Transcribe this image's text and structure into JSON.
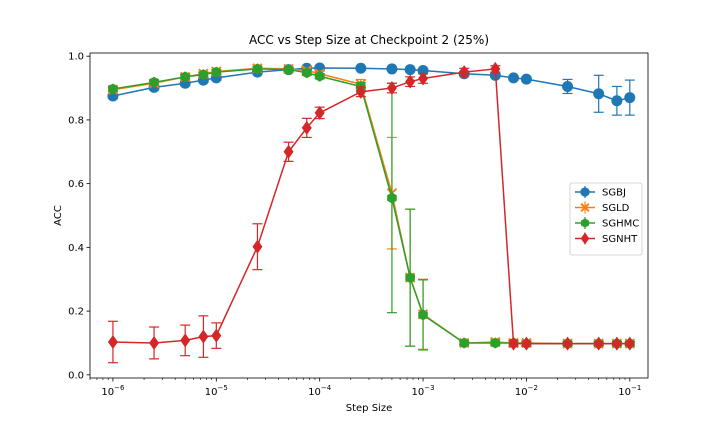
{
  "chart_data": {
    "type": "line",
    "title": "ACC vs Step Size at Checkpoint 2 (25%)",
    "xlabel": "Step Size",
    "ylabel": "ACC",
    "xscale": "log",
    "xlim": [
      6e-07,
      0.15
    ],
    "ylim": [
      -0.01,
      1.01
    ],
    "xticks": [
      {
        "value": 1e-06,
        "base": "10",
        "exp": "−6"
      },
      {
        "value": 1e-05,
        "base": "10",
        "exp": "−5"
      },
      {
        "value": 0.0001,
        "base": "10",
        "exp": "−4"
      },
      {
        "value": 0.001,
        "base": "10",
        "exp": "−3"
      },
      {
        "value": 0.01,
        "base": "10",
        "exp": "−2"
      },
      {
        "value": 0.1,
        "base": "10",
        "exp": "−1"
      }
    ],
    "yticks": [
      {
        "value": 0.0,
        "label": "0.0"
      },
      {
        "value": 0.2,
        "label": "0.2"
      },
      {
        "value": 0.4,
        "label": "0.4"
      },
      {
        "value": 0.6,
        "label": "0.6"
      },
      {
        "value": 0.8,
        "label": "0.8"
      },
      {
        "value": 1.0,
        "label": "1.0"
      }
    ],
    "grid": false,
    "legend_position": "center-right",
    "x": [
      1e-06,
      2.5e-06,
      5e-06,
      7.5e-06,
      1e-05,
      2.5e-05,
      5e-05,
      7.5e-05,
      0.0001,
      0.00025,
      0.0005,
      0.00075,
      0.001,
      0.0025,
      0.005,
      0.0075,
      0.01,
      0.025,
      0.05,
      0.075,
      0.1
    ],
    "series": [
      {
        "name": "SGBJ",
        "color": "#1f77b4",
        "marker": "circle",
        "values": [
          0.875,
          0.902,
          0.915,
          0.925,
          0.932,
          0.95,
          0.958,
          0.962,
          0.963,
          0.962,
          0.96,
          0.958,
          0.955,
          0.945,
          0.94,
          0.932,
          0.928,
          0.905,
          0.882,
          0.86,
          0.87
        ],
        "errors": [
          0.008,
          0.008,
          0.008,
          0.008,
          0.008,
          0.006,
          0.006,
          0.005,
          0.005,
          0.005,
          0.005,
          0.005,
          0.005,
          0.006,
          0.006,
          0.007,
          0.007,
          0.022,
          0.058,
          0.045,
          0.055
        ]
      },
      {
        "name": "SGLD",
        "color": "#ff7f0e",
        "marker": "x",
        "values": [
          0.895,
          0.915,
          0.935,
          0.945,
          0.952,
          0.962,
          0.96,
          0.955,
          0.945,
          0.912,
          0.57,
          0.305,
          0.19,
          0.1,
          0.103,
          0.1,
          0.1,
          0.098,
          0.098,
          0.098,
          0.098
        ],
        "errors": [
          0.006,
          0.006,
          0.006,
          0.006,
          0.006,
          0.006,
          0.006,
          0.008,
          0.008,
          0.015,
          0.175,
          0.215,
          0.11,
          0.005,
          0.008,
          0.008,
          0.005,
          0.005,
          0.005,
          0.005,
          0.005
        ]
      },
      {
        "name": "SGHMC",
        "color": "#2ca02c",
        "marker": "hexagon",
        "values": [
          0.897,
          0.918,
          0.935,
          0.942,
          0.95,
          0.96,
          0.958,
          0.948,
          0.937,
          0.905,
          0.555,
          0.305,
          0.188,
          0.1,
          0.1,
          0.1,
          0.098,
          0.098,
          0.098,
          0.098,
          0.098
        ],
        "errors": [
          0.006,
          0.006,
          0.006,
          0.006,
          0.006,
          0.006,
          0.006,
          0.008,
          0.008,
          0.012,
          0.36,
          0.215,
          0.11,
          0.005,
          0.005,
          0.005,
          0.005,
          0.005,
          0.005,
          0.005,
          0.005
        ]
      },
      {
        "name": "SGNHT",
        "color": "#d62728",
        "marker": "diamond",
        "values": [
          0.103,
          0.1,
          0.108,
          0.12,
          0.123,
          0.402,
          0.7,
          0.775,
          0.822,
          0.888,
          0.9,
          0.92,
          0.93,
          0.95,
          0.96,
          0.098,
          0.098,
          0.098,
          0.098,
          0.098,
          0.098
        ],
        "errors": [
          0.065,
          0.05,
          0.048,
          0.065,
          0.04,
          0.072,
          0.03,
          0.03,
          0.018,
          0.015,
          0.015,
          0.015,
          0.015,
          0.012,
          0.01,
          0.01,
          0.008,
          0.006,
          0.006,
          0.006,
          0.006
        ]
      }
    ]
  }
}
